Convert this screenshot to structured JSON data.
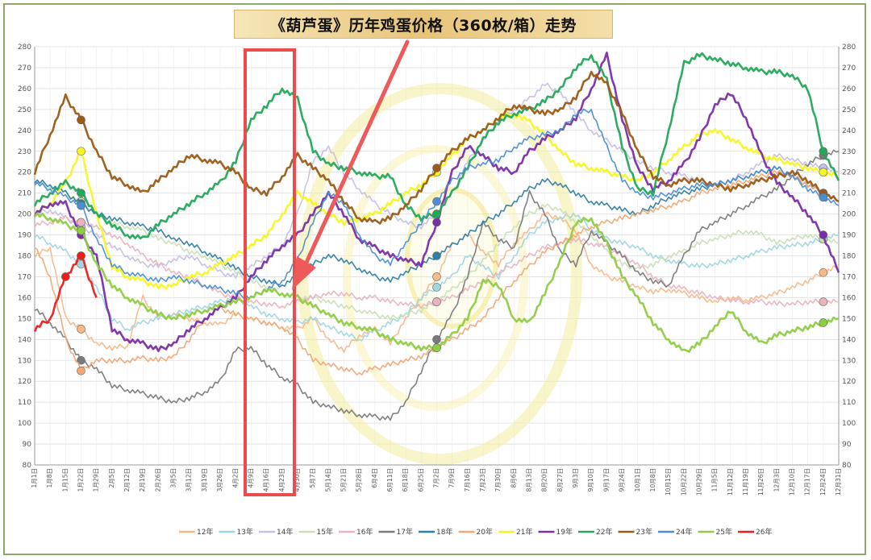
{
  "title": "《葫芦蛋》历年鸡蛋价格（360枚/箱）走势",
  "chart_data": {
    "type": "line",
    "title": "《葫芦蛋》历年鸡蛋价格（360枚/箱）走势",
    "ylim": [
      80,
      280
    ],
    "yticks": [
      80,
      90,
      100,
      110,
      120,
      130,
      140,
      150,
      160,
      170,
      180,
      190,
      200,
      210,
      220,
      230,
      240,
      250,
      260,
      270,
      280
    ],
    "grid": true,
    "legend_position": "bottom",
    "x_tick_labels": [
      "1月1日",
      "1月8日",
      "1月15日",
      "1月22日",
      "1月29日",
      "2月5日",
      "2月12日",
      "2月19日",
      "2月26日",
      "3月5日",
      "3月12日",
      "3月19日",
      "3月26日",
      "4月2日",
      "4月9日",
      "4月16日",
      "4月23日",
      "4月30日",
      "5月7日",
      "5月14日",
      "5月21日",
      "5月28日",
      "6月4日",
      "6月11日",
      "6月18日",
      "6月25日",
      "7月2日",
      "7月9日",
      "7月16日",
      "7月23日",
      "7月30日",
      "8月6日",
      "8月13日",
      "8月20日",
      "8月27日",
      "9月3日",
      "9月10日",
      "9月17日",
      "9月24日",
      "10月1日",
      "10月8日",
      "10月15日",
      "10月22日",
      "10月29日",
      "11月5日",
      "11月12日",
      "11月19日",
      "11月26日",
      "12月3日",
      "12月10日",
      "12月17日",
      "12月24日",
      "12月31日"
    ],
    "series": [
      {
        "name": "12年",
        "color": "#f5b98a",
        "values": [
          180,
          184,
          150,
          145,
          138,
          136,
          137,
          160,
          150,
          152,
          150,
          148,
          147,
          152,
          150,
          148,
          146,
          145,
          150,
          140,
          135,
          142,
          145,
          138,
          150,
          160,
          170,
          185,
          190,
          182,
          176,
          186,
          192,
          200,
          198,
          192,
          176,
          170,
          168,
          165,
          163,
          164,
          162,
          160,
          158,
          160,
          159,
          160,
          162,
          165,
          168,
          172,
          175
        ]
      },
      {
        "name": "13年",
        "color": "#9fd6e0",
        "values": [
          190,
          186,
          182,
          176,
          165,
          150,
          145,
          148,
          150,
          152,
          154,
          156,
          158,
          160,
          156,
          152,
          150,
          148,
          150,
          146,
          143,
          140,
          144,
          148,
          152,
          160,
          165,
          170,
          180,
          175,
          170,
          180,
          190,
          196,
          198,
          200,
          193,
          188,
          186,
          184,
          180,
          178,
          176,
          175,
          176,
          178,
          180,
          182,
          184,
          185,
          186,
          188,
          190
        ]
      },
      {
        "name": "14年",
        "color": "#c6bfe6",
        "values": [
          200,
          202,
          198,
          194,
          190,
          185,
          180,
          176,
          175,
          178,
          180,
          176,
          172,
          170,
          175,
          180,
          185,
          200,
          225,
          232,
          220,
          212,
          205,
          200,
          196,
          194,
          200,
          210,
          225,
          235,
          245,
          250,
          255,
          262,
          258,
          248,
          240,
          235,
          230,
          225,
          222,
          220,
          218,
          216,
          214,
          216,
          220,
          224,
          228,
          226,
          224,
          222,
          220
        ]
      },
      {
        "name": "15年",
        "color": "#c9dfb5",
        "values": [
          215,
          213,
          210,
          206,
          200,
          196,
          194,
          192,
          188,
          186,
          182,
          180,
          176,
          172,
          168,
          165,
          162,
          160,
          160,
          158,
          156,
          154,
          152,
          150,
          152,
          154,
          158,
          164,
          170,
          178,
          186,
          194,
          200,
          204,
          202,
          196,
          190,
          182,
          176,
          174,
          176,
          180,
          182,
          186,
          188,
          190,
          192,
          190,
          186,
          188,
          190,
          188,
          186
        ]
      },
      {
        "name": "16年",
        "color": "#eab3bd",
        "values": [
          195,
          196,
          198,
          196,
          194,
          190,
          186,
          180,
          176,
          172,
          170,
          166,
          162,
          160,
          158,
          157,
          156,
          158,
          160,
          162,
          162,
          160,
          160,
          158,
          157,
          156,
          158,
          160,
          164,
          168,
          172,
          176,
          180,
          184,
          186,
          188,
          186,
          184,
          180,
          176,
          170,
          166,
          164,
          162,
          160,
          159,
          158,
          158,
          157,
          157,
          158,
          158,
          158
        ]
      },
      {
        "name": "17年",
        "color": "#7a7a7a",
        "values": [
          155,
          148,
          140,
          130,
          126,
          118,
          116,
          114,
          112,
          110,
          112,
          115,
          120,
          135,
          136,
          128,
          122,
          118,
          110,
          108,
          106,
          104,
          103,
          102,
          110,
          125,
          140,
          152,
          170,
          196,
          188,
          184,
          210,
          200,
          182,
          176,
          192,
          186,
          180,
          172,
          168,
          166,
          180,
          192,
          196,
          200,
          204,
          208,
          212,
          218,
          224,
          228,
          230
        ]
      },
      {
        "name": "18年",
        "color": "#2f7ea6",
        "values": [
          216,
          214,
          210,
          205,
          200,
          198,
          196,
          194,
          192,
          188,
          186,
          182,
          178,
          174,
          170,
          168,
          166,
          170,
          176,
          180,
          178,
          174,
          170,
          168,
          172,
          176,
          180,
          185,
          190,
          196,
          200,
          206,
          212,
          216,
          214,
          210,
          206,
          204,
          202,
          200,
          204,
          208,
          210,
          212,
          214,
          216,
          218,
          220,
          222,
          218,
          214,
          210,
          206
        ]
      },
      {
        "name": "20年",
        "color": "#f0a874",
        "values": [
          185,
          170,
          140,
          125,
          130,
          130,
          130,
          131,
          130,
          132,
          140,
          150,
          155,
          152,
          150,
          148,
          146,
          140,
          130,
          128,
          126,
          124,
          126,
          128,
          130,
          132,
          136,
          140,
          145,
          150,
          160,
          168,
          175,
          182,
          186,
          190,
          194,
          196,
          198,
          200,
          202,
          204,
          206,
          210,
          212,
          214,
          216,
          218,
          220,
          218,
          214,
          210,
          206
        ]
      },
      {
        "name": "21年",
        "color": "#f5f526",
        "values": [
          200,
          205,
          215,
          230,
          200,
          175,
          170,
          168,
          165,
          166,
          170,
          172,
          176,
          180,
          185,
          190,
          200,
          210,
          205,
          200,
          196,
          198,
          200,
          205,
          210,
          214,
          220,
          228,
          236,
          240,
          246,
          248,
          244,
          238,
          230,
          224,
          222,
          220,
          218,
          216,
          220,
          226,
          232,
          238,
          240,
          236,
          232,
          228,
          226,
          224,
          222,
          220,
          218
        ]
      },
      {
        "name": "19年",
        "color": "#7a2ea8",
        "values": [
          200,
          205,
          205,
          190,
          180,
          145,
          140,
          138,
          135,
          138,
          145,
          150,
          155,
          160,
          170,
          178,
          185,
          190,
          200,
          210,
          200,
          188,
          184,
          180,
          178,
          176,
          196,
          220,
          232,
          228,
          222,
          220,
          230,
          236,
          240,
          246,
          260,
          276,
          245,
          222,
          212,
          216,
          224,
          236,
          252,
          258,
          246,
          228,
          215,
          208,
          200,
          190,
          172
        ]
      },
      {
        "name": "22年",
        "color": "#23a859",
        "values": [
          205,
          210,
          215,
          210,
          200,
          195,
          190,
          188,
          195,
          200,
          205,
          210,
          215,
          225,
          245,
          252,
          260,
          255,
          230,
          224,
          222,
          220,
          218,
          218,
          204,
          198,
          200,
          210,
          222,
          236,
          244,
          248,
          250,
          254,
          260,
          270,
          276,
          264,
          232,
          212,
          210,
          240,
          272,
          276,
          274,
          272,
          270,
          268,
          268,
          266,
          260,
          230,
          216
        ]
      },
      {
        "name": "23年",
        "color": "#9c5a16",
        "values": [
          220,
          238,
          256,
          245,
          230,
          218,
          214,
          210,
          216,
          222,
          228,
          226,
          224,
          220,
          212,
          210,
          218,
          228,
          222,
          216,
          206,
          198,
          196,
          198,
          204,
          212,
          222,
          230,
          236,
          240,
          246,
          252,
          250,
          248,
          250,
          256,
          268,
          262,
          248,
          230,
          218,
          214,
          216,
          216,
          214,
          212,
          214,
          216,
          218,
          220,
          216,
          210,
          206
        ]
      },
      {
        "name": "24年",
        "color": "#4a8ed6",
        "values": [
          215,
          212,
          208,
          204,
          188,
          176,
          172,
          170,
          168,
          170,
          168,
          166,
          164,
          162,
          160,
          164,
          168,
          178,
          196,
          210,
          205,
          190,
          180,
          176,
          186,
          196,
          206,
          216,
          222,
          224,
          226,
          232,
          236,
          238,
          240,
          248,
          250,
          232,
          216,
          210,
          208,
          210,
          212,
          214,
          214,
          216,
          218,
          220,
          222,
          218,
          212,
          208,
          204
        ]
      },
      {
        "name": "25年",
        "color": "#8fcc45",
        "values": [
          200,
          198,
          195,
          192,
          176,
          166,
          160,
          156,
          152,
          150,
          152,
          154,
          156,
          158,
          160,
          164,
          162,
          160,
          156,
          152,
          148,
          146,
          144,
          140,
          138,
          136,
          136,
          142,
          150,
          168,
          166,
          150,
          148,
          162,
          178,
          196,
          198,
          186,
          170,
          160,
          148,
          140,
          134,
          138,
          146,
          154,
          144,
          138,
          142,
          144,
          146,
          148,
          150
        ]
      },
      {
        "name": "26年",
        "color": "#ee1c1c",
        "values": [
          145,
          150,
          170,
          180,
          160
        ]
      }
    ]
  }
}
